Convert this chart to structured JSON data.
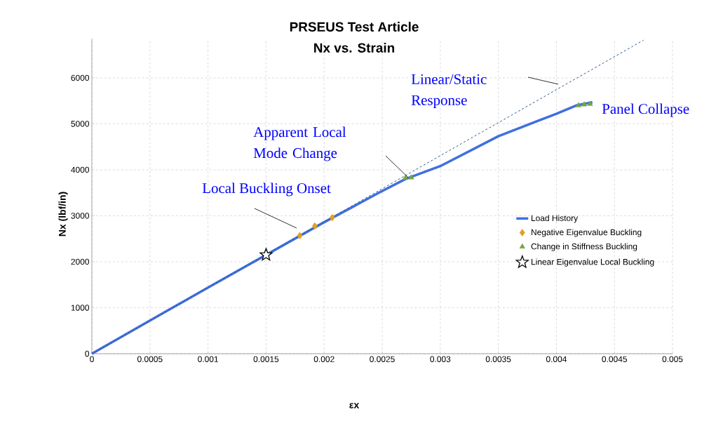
{
  "chart_data": {
    "type": "line",
    "title": "PRSEUS Test Article",
    "subtitle": "Nx vs. Strain",
    "xlabel": "εx",
    "ylabel": "Nx (lbf/in)",
    "xlim": [
      0,
      0.005
    ],
    "ylim": [
      0,
      6850
    ],
    "xticks": [
      0,
      0.0005,
      0.001,
      0.0015,
      0.002,
      0.0025,
      0.003,
      0.0035,
      0.004,
      0.0045,
      0.005
    ],
    "yticks": [
      0,
      1000,
      2000,
      3000,
      4000,
      5000,
      6000
    ],
    "grid": true,
    "legend": "right",
    "series": [
      {
        "name": "Load History",
        "color": "#3f6fe0",
        "marker": "none",
        "x": [
          0,
          0.0005,
          0.001,
          0.0015,
          0.002,
          0.00247,
          0.0027,
          0.003,
          0.0035,
          0.004,
          0.00417,
          0.00431
        ],
        "values": [
          0,
          720,
          1440,
          2150,
          2860,
          3500,
          3800,
          4080,
          4730,
          5220,
          5400,
          5470
        ]
      },
      {
        "name": "Negative Eigenvalue Buckling",
        "type": "scatter",
        "color": "#e0a020",
        "marker": "diamond",
        "x": [
          0.00179,
          0.00192,
          0.00207
        ],
        "values": [
          2570,
          2780,
          2960
        ]
      },
      {
        "name": "Change in Stiffness Buckling",
        "type": "scatter",
        "color": "#77a33f",
        "marker": "triangle",
        "x": [
          0.0027,
          0.00275,
          0.00419,
          0.00424,
          0.00429
        ],
        "values": [
          3820,
          3830,
          5400,
          5420,
          5430
        ]
      },
      {
        "name": "Linear Eigenvalue Local Buckling",
        "type": "scatter",
        "color": "#000000",
        "marker": "star",
        "x": [
          0.0015
        ],
        "values": [
          2150
        ]
      },
      {
        "color": "#2e5a8e",
        "line_style": "dashed",
        "marker": "none",
        "x": [
          0,
          0.00475
        ],
        "values": [
          0,
          6820
        ]
      }
    ],
    "annotations": [
      "Local Buckling Onset",
      "Apparent Local Mode Change",
      "Linear/Static Response",
      "Panel Collapse"
    ]
  }
}
